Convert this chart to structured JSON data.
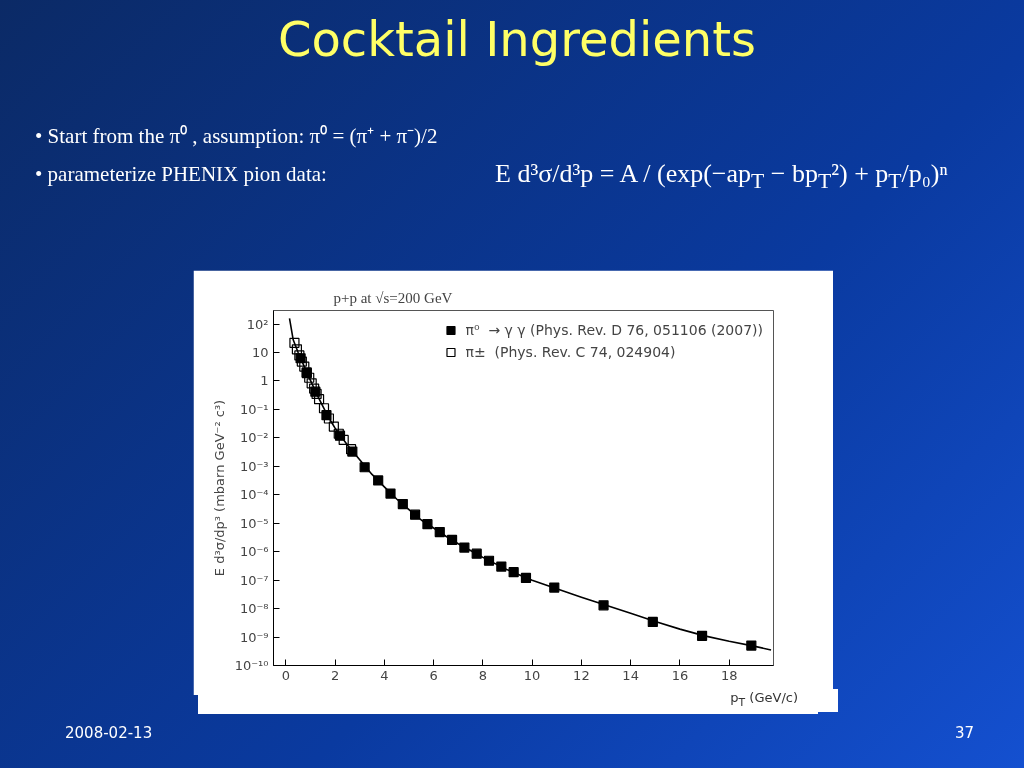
{
  "chart_data": {
    "type": "scatter",
    "title": "Cocktail Ingredients",
    "subtitle": "p+p at √s=200 GeV",
    "xlabel": "p$_{T}$ (GeV/c)",
    "ylabel": "E d³σ/dp³ (mbarn GeV⁻² c³)",
    "annotations": [
      "• Start from the π⁰ , assumption: π⁰ = (π⁺ + π⁻)/2",
      "• parameterize PHENIX pion data:",
      "E d³σ/d³p = A / (exp(−ap$_{T}$ − bp$_{T}$²) + p$_{T}$/p₀)ⁿ",
      "2008-02-13",
      "37"
    ],
    "xlim": [
      -0.5,
      19.8
    ],
    "xticks": [
      0,
      2,
      4,
      6,
      8,
      10,
      12,
      14,
      16,
      18
    ],
    "ylim": [
      1e-10,
      300
    ],
    "log": "y",
    "yticks": [
      {
        "value": 1e-10,
        "label": "10⁻¹⁰"
      },
      {
        "value": 1e-09,
        "label": "10⁻⁹"
      },
      {
        "value": 1e-08,
        "label": "10⁻⁸"
      },
      {
        "value": 1e-07,
        "label": "10⁻⁷"
      },
      {
        "value": 1e-06,
        "label": "10⁻⁶"
      },
      {
        "value": 1e-05,
        "label": "10⁻⁵"
      },
      {
        "value": 0.0001,
        "label": "10⁻⁴"
      },
      {
        "value": 0.001,
        "label": "10⁻³"
      },
      {
        "value": 0.01,
        "label": "10⁻²"
      },
      {
        "value": 0.1,
        "label": "10⁻¹"
      },
      1,
      10,
      {
        "value": 100,
        "label": "10²"
      }
    ],
    "grid": false,
    "legend": "top right",
    "series": [
      {
        "type": "line",
        "color": "#000000",
        "x": [
          0.15,
          0.3,
          0.5,
          0.75,
          1,
          1.25,
          1.5,
          1.75,
          2,
          2.5,
          3,
          3.5,
          4,
          4.5,
          5,
          5.5,
          6,
          6.5,
          7,
          7.5,
          8,
          9,
          10,
          11,
          12,
          13,
          14,
          15,
          16,
          17,
          18,
          19,
          19.7
        ],
        "values": [
          160,
          28,
          10,
          3.2,
          1.05,
          0.35,
          0.13,
          0.05,
          0.022,
          0.0056,
          0.0017,
          0.00052,
          0.00019,
          7.1e-05,
          3e-05,
          1.3e-05,
          6.8e-06,
          3.5e-06,
          1.9e-06,
          1.1e-06,
          6.3e-07,
          2.3e-07,
          1e-07,
          5e-08,
          2.5e-08,
          1.3e-08,
          6.8e-09,
          3.5e-09,
          1.9e-09,
          1.1e-09,
          7.1e-10,
          4.8e-10,
          3.5e-10
        ]
      },
      {
        "name": "π±  (Phys. Rev. C 74, 024904)",
        "marker": "square_open",
        "color": "#000000",
        "x": [
          0.35,
          0.45,
          0.55,
          0.65,
          0.75,
          0.85,
          0.95,
          1.05,
          1.15,
          1.25,
          1.35,
          1.55,
          1.75,
          1.95,
          2.15,
          2.35,
          2.65
        ],
        "values": [
          22,
          13,
          7.9,
          4.8,
          3.2,
          2.0,
          1.3,
          0.83,
          0.54,
          0.35,
          0.23,
          0.11,
          0.048,
          0.025,
          0.014,
          0.0085,
          0.004
        ]
      },
      {
        "name": "π⁰  → γ γ (Phys. Rev. D 76, 051106 (2007))",
        "marker": "square",
        "color": "#000000",
        "x": [
          0.6,
          0.85,
          1.2,
          1.65,
          2.2,
          2.7,
          3.2,
          3.75,
          4.25,
          4.75,
          5.25,
          5.75,
          6.25,
          6.75,
          7.25,
          7.75,
          8.25,
          8.75,
          9.25,
          9.75,
          10.9,
          12.9,
          14.9,
          16.9,
          18.9
        ],
        "values": [
          6.3,
          1.9,
          0.42,
          0.063,
          0.012,
          0.0033,
          0.00093,
          0.00032,
          0.00011,
          4.7e-05,
          2e-05,
          9.3e-06,
          4.9e-06,
          2.6e-06,
          1.4e-06,
          8.5e-07,
          4.8e-07,
          3e-07,
          1.9e-07,
          1.2e-07,
          5.5e-08,
          1.3e-08,
          3.4e-09,
          1.1e-09,
          5e-10
        ]
      }
    ]
  }
}
